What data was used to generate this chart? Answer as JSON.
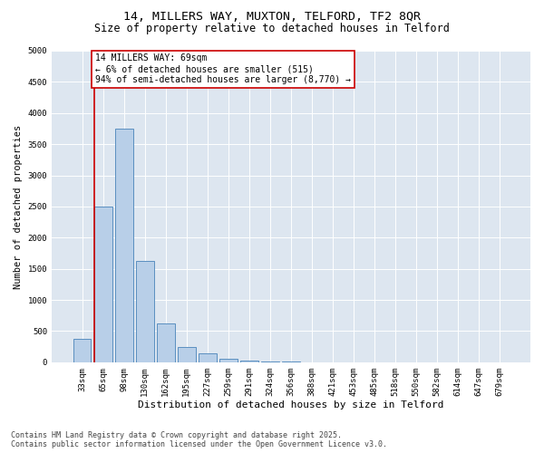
{
  "title1": "14, MILLERS WAY, MUXTON, TELFORD, TF2 8QR",
  "title2": "Size of property relative to detached houses in Telford",
  "xlabel": "Distribution of detached houses by size in Telford",
  "ylabel": "Number of detached properties",
  "categories": [
    "33sqm",
    "65sqm",
    "98sqm",
    "130sqm",
    "162sqm",
    "195sqm",
    "227sqm",
    "259sqm",
    "291sqm",
    "324sqm",
    "356sqm",
    "388sqm",
    "421sqm",
    "453sqm",
    "485sqm",
    "518sqm",
    "550sqm",
    "582sqm",
    "614sqm",
    "647sqm",
    "679sqm"
  ],
  "values": [
    370,
    2500,
    3750,
    1620,
    620,
    250,
    150,
    55,
    28,
    18,
    8,
    4,
    2,
    1,
    0,
    0,
    0,
    0,
    0,
    0,
    0
  ],
  "bar_color": "#b8cfe8",
  "bar_edge_color": "#5a8fc0",
  "vline_x": 1.0,
  "vline_color": "#cc0000",
  "annotation_text": "14 MILLERS WAY: 69sqm\n← 6% of detached houses are smaller (515)\n94% of semi-detached houses are larger (8,770) →",
  "annotation_box_color": "#ffffff",
  "annotation_box_edge": "#cc0000",
  "ylim": [
    0,
    5000
  ],
  "yticks": [
    0,
    500,
    1000,
    1500,
    2000,
    2500,
    3000,
    3500,
    4000,
    4500,
    5000
  ],
  "bg_color": "#dde6f0",
  "footer": "Contains HM Land Registry data © Crown copyright and database right 2025.\nContains public sector information licensed under the Open Government Licence v3.0.",
  "title1_fontsize": 9.5,
  "title2_fontsize": 8.5,
  "xlabel_fontsize": 8,
  "ylabel_fontsize": 7.5,
  "tick_fontsize": 6.5,
  "annotation_fontsize": 7,
  "footer_fontsize": 6
}
